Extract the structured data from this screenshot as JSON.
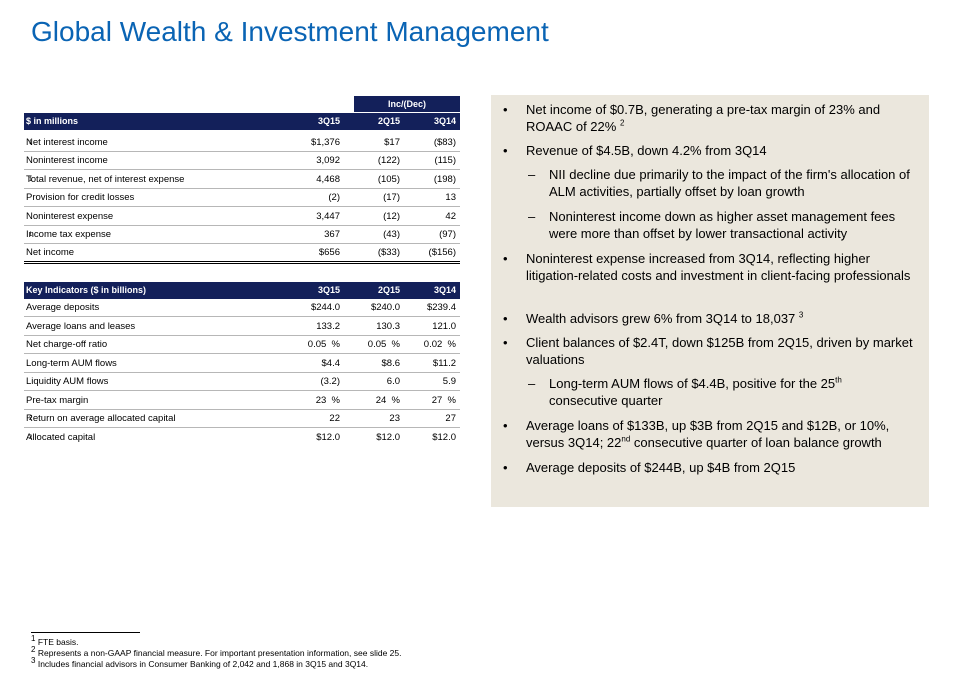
{
  "title": "Global Wealth & Investment Management",
  "table1": {
    "group_header": "Inc/(Dec)",
    "header_label": "$ in millions",
    "columns": [
      "3Q15",
      "2Q15",
      "3Q14"
    ],
    "rows": [
      {
        "label": "Net interest income",
        "fn": "1",
        "values": [
          "$1,376",
          "$17",
          "($83)"
        ]
      },
      {
        "label": "Noninterest income",
        "fn": "",
        "values": [
          "3,092",
          "(122)",
          "(115)"
        ]
      },
      {
        "label": "Total revenue, net of interest expense",
        "fn": "1",
        "values": [
          "4,468",
          "(105)",
          "(198)"
        ]
      },
      {
        "label": "Provision for credit losses",
        "fn": "",
        "values": [
          "(2)",
          "(17)",
          "13"
        ]
      },
      {
        "label": "Noninterest expense",
        "fn": "",
        "values": [
          "3,447",
          "(12)",
          "42"
        ]
      },
      {
        "label": "Income tax expense",
        "fn": "1",
        "values": [
          "367",
          "(43)",
          "(97)"
        ]
      },
      {
        "label": "Net income",
        "fn": "",
        "values": [
          "$656",
          "($33)",
          "($156)"
        ]
      }
    ]
  },
  "table2": {
    "header_label": "Key Indicators ($ in billions)",
    "columns": [
      "3Q15",
      "2Q15",
      "3Q14"
    ],
    "rows": [
      {
        "label": "Average deposits",
        "fn": "",
        "values": [
          "$244.0",
          "$240.0",
          "$239.4"
        ]
      },
      {
        "label": "Average loans and leases",
        "fn": "",
        "values": [
          "133.2",
          "130.3",
          "121.0"
        ]
      },
      {
        "label": "Net charge-off ratio",
        "fn": "",
        "values": [
          "0.05  %",
          "0.05  %",
          "0.02  %"
        ]
      },
      {
        "label": "Long-term AUM flows",
        "fn": "",
        "values": [
          "$4.4",
          "$8.6",
          "$11.2"
        ]
      },
      {
        "label": "Liquidity AUM flows",
        "fn": "",
        "values": [
          "(3.2)",
          "6.0",
          "5.9"
        ]
      },
      {
        "label": "Pre-tax margin",
        "fn": "",
        "values": [
          "23  %",
          "24  %",
          "27  %"
        ]
      },
      {
        "label": "Return on average allocated capital",
        "fn": "2",
        "values": [
          "22",
          "23",
          "27"
        ]
      },
      {
        "label": "Allocated capital",
        "fn": "2",
        "values": [
          "$12.0",
          "$12.0",
          "$12.0"
        ]
      }
    ]
  },
  "bullets": {
    "b1": "Net income of $0.7B, generating a pre-tax margin of 23% and ROAAC of 22%",
    "b1_sup": "2",
    "b2": "Revenue of $4.5B, down 4.2% from 3Q14",
    "b2_s1": "NII decline due primarily to the impact of the firm's allocation of ALM activities, partially offset by loan growth",
    "b2_s2": "Noninterest income down as higher asset management fees were more than offset by lower transactional activity",
    "b3": "Noninterest expense increased from 3Q14, reflecting higher litigation-related costs and investment in client-facing professionals",
    "b4": "Wealth advisors grew 6% from 3Q14 to 18,037",
    "b4_sup": "3",
    "b5": "Client balances of $2.4T, down $125B from 2Q15, driven by market valuations",
    "b5_s1_a": "Long-term AUM flows of $4.4B, positive for the 25",
    "b5_s1_sup": "th",
    "b5_s1_b": "consecutive quarter",
    "b6_a": "Average loans of $133B, up $3B from 2Q15 and $12B, or 10%, versus 3Q14; 22",
    "b6_sup": "nd",
    "b6_b": " consecutive quarter of loan balance growth",
    "b7": "Average deposits of $244B, up $4B from 2Q15",
    "dot": "•",
    "dash": "–"
  },
  "footnotes": {
    "f1_mark": "1",
    "f1": "FTE basis.",
    "f2_mark": "2",
    "f2": "Represents a non-GAAP financial measure. For important presentation information, see slide 25.",
    "f3_mark": "3",
    "f3": "Includes financial advisors in Consumer Banking of 2,042 and 1,868 in 3Q15 and 3Q14."
  }
}
